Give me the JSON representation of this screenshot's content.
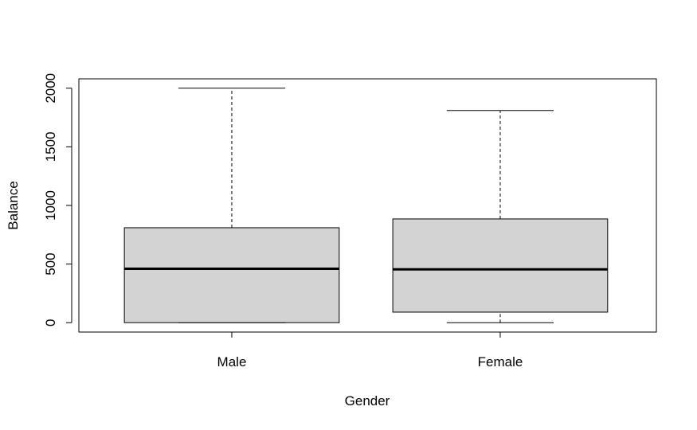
{
  "chart_data": {
    "type": "boxplot",
    "xlabel": "Gender",
    "ylabel": "Balance",
    "categories": [
      "Male",
      "Female"
    ],
    "ylim": [
      -80,
      2080
    ],
    "yticks": [
      0,
      500,
      1000,
      1500,
      2000
    ],
    "boxes": [
      {
        "category": "Male",
        "whisker_low": 0,
        "q1": 0,
        "median": 460,
        "q3": 810,
        "whisker_high": 2000
      },
      {
        "category": "Female",
        "whisker_low": 0,
        "q1": 90,
        "median": 455,
        "q3": 885,
        "whisker_high": 1810
      }
    ],
    "colors": {
      "box_fill": "#d3d3d3",
      "line": "#000000"
    },
    "grid": false
  }
}
